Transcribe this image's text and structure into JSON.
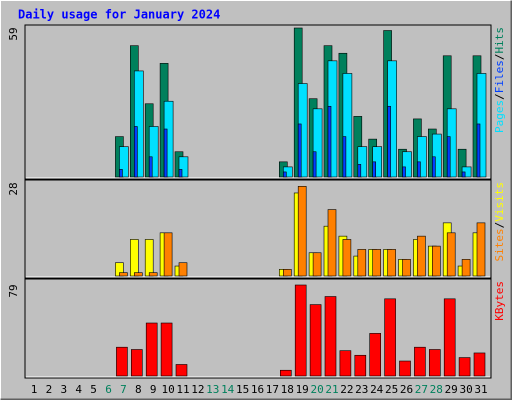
{
  "chart_data": [
    {
      "type": "bar",
      "title": "Daily usage for January 2024",
      "ylim": [
        0,
        59
      ],
      "yticks": [
        59
      ],
      "legend_separator": "/",
      "series": [
        {
          "name": "Pages",
          "color": "#00e0ff",
          "values": [
            0,
            0,
            0,
            0,
            0,
            0,
            12,
            42,
            20,
            30,
            8,
            0,
            0,
            0,
            0,
            0,
            0,
            4,
            37,
            27,
            46,
            41,
            12,
            12,
            46,
            10,
            16,
            17,
            27,
            4,
            41
          ]
        },
        {
          "name": "Files",
          "color": "#0040ff",
          "values": [
            0,
            0,
            0,
            0,
            0,
            0,
            3,
            20,
            8,
            19,
            3,
            0,
            0,
            0,
            0,
            0,
            0,
            2,
            21,
            10,
            28,
            16,
            5,
            6,
            28,
            4,
            6,
            8,
            16,
            2,
            21
          ]
        },
        {
          "name": "Hits",
          "color": "#00805c",
          "values": [
            0,
            0,
            0,
            0,
            0,
            0,
            16,
            52,
            29,
            45,
            10,
            0,
            0,
            0,
            0,
            0,
            0,
            6,
            59,
            31,
            52,
            49,
            24,
            15,
            58,
            11,
            23,
            19,
            48,
            11,
            48
          ]
        }
      ]
    },
    {
      "type": "bar",
      "ylim": [
        0,
        28
      ],
      "yticks": [
        28
      ],
      "legend_separator": "/",
      "series": [
        {
          "name": "Sites",
          "color": "#ff8000",
          "values": [
            0,
            0,
            0,
            0,
            0,
            0,
            1,
            1,
            1,
            13,
            4,
            0,
            0,
            0,
            0,
            0,
            0,
            2,
            27,
            7,
            20,
            11,
            8,
            8,
            8,
            5,
            12,
            9,
            13,
            5,
            16
          ]
        },
        {
          "name": "Visits",
          "color": "#ffff00",
          "values": [
            0,
            0,
            0,
            0,
            0,
            0,
            4,
            11,
            11,
            13,
            3,
            0,
            0,
            0,
            0,
            0,
            0,
            2,
            25,
            7,
            15,
            12,
            6,
            8,
            8,
            5,
            11,
            9,
            16,
            3,
            13
          ]
        }
      ]
    },
    {
      "type": "bar",
      "ylim": [
        0,
        79
      ],
      "yticks": [
        79
      ],
      "categories": [
        "1",
        "2",
        "3",
        "4",
        "5",
        "6",
        "7",
        "8",
        "9",
        "10",
        "11",
        "12",
        "13",
        "14",
        "15",
        "16",
        "17",
        "18",
        "19",
        "20",
        "21",
        "22",
        "23",
        "24",
        "25",
        "26",
        "27",
        "28",
        "29",
        "30",
        "31"
      ],
      "label_colors": [
        "#000000",
        "#000000",
        "#000000",
        "#000000",
        "#000000",
        "#00805c",
        "#00805c",
        "#000000",
        "#000000",
        "#000000",
        "#000000",
        "#000000",
        "#00805c",
        "#00805c",
        "#000000",
        "#000000",
        "#000000",
        "#000000",
        "#000000",
        "#00805c",
        "#00805c",
        "#000000",
        "#000000",
        "#000000",
        "#000000",
        "#000000",
        "#00805c",
        "#00805c",
        "#000000",
        "#000000",
        "#000000"
      ],
      "series": [
        {
          "name": "KBytes",
          "color": "#ff0000",
          "values": [
            0,
            0,
            0,
            0,
            0,
            0,
            25,
            23,
            46,
            46,
            10,
            0,
            0,
            0,
            0,
            0,
            0,
            5,
            79,
            62,
            69,
            22,
            18,
            37,
            67,
            13,
            25,
            23,
            67,
            16,
            20
          ]
        }
      ]
    }
  ]
}
